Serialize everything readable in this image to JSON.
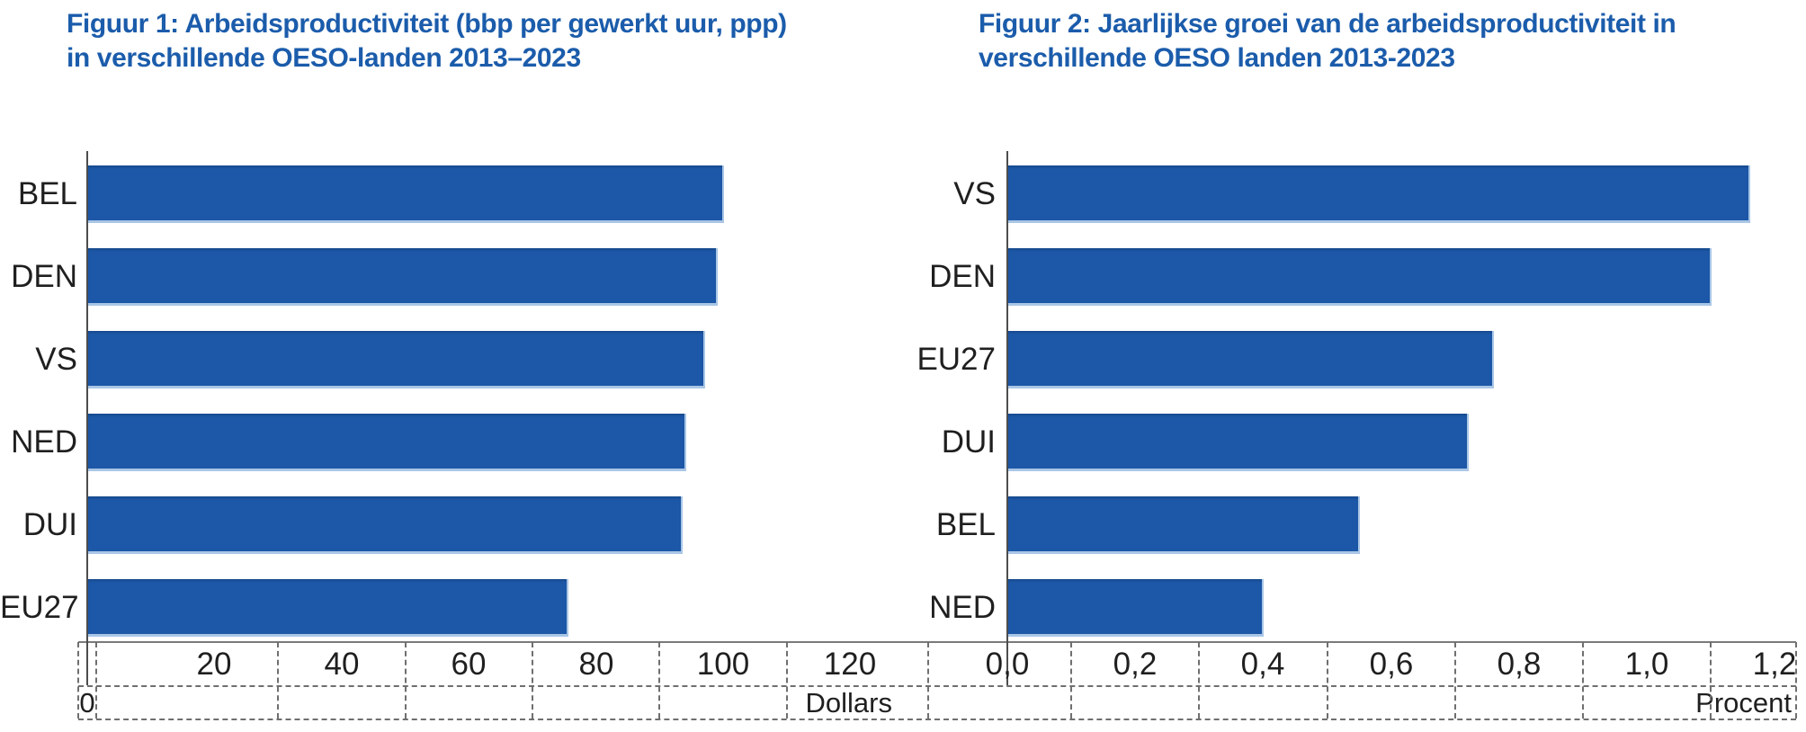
{
  "page": {
    "background": "#ffffff",
    "description": "Two horizontal bar charts comparing OECD countries"
  },
  "style": {
    "title_color": "#1b5cab",
    "bar_color": "#1d57a7",
    "bar_edge_color": "#a9c6e6",
    "bar_top_shade": "#164a8d",
    "x_axis_color": "#7a7a7a",
    "y_axis_color": "#4d4d4d",
    "grid_dash_color": "#6f6f6f",
    "text_color": "#1f1f1f"
  },
  "figure1": {
    "title_line1": "Figuur 1: Arbeidsproductiviteit (bbp per gewerkt uur, ppp)",
    "title_line2": "in verschillende OESO-landen 2013–2023"
  },
  "figure2": {
    "title_line1": "Figuur 2: Jaarlijkse groei van de arbeidsproductiviteit in",
    "title_line2": "verschillende OESO landen 2013-2023"
  },
  "chart_data": [
    {
      "type": "bar",
      "orientation": "horizontal",
      "title": "Figuur 1: Arbeidsproductiviteit (bbp per gewerkt uur, ppp) in verschillende OESO-landen 2013–2023",
      "categories": [
        "BEL",
        "DEN",
        "VS",
        "NED",
        "DUI",
        "EU27"
      ],
      "values": [
        100,
        99,
        97,
        94,
        93.5,
        75.5
      ],
      "xlabel": "Dollars",
      "origin_label": "0",
      "xtick_labels": [
        "20",
        "40",
        "60",
        "80",
        "100",
        "120"
      ],
      "xtick_values": [
        20,
        40,
        60,
        80,
        100,
        120
      ],
      "xlim": [
        0,
        132
      ],
      "grid": "dashed-table-below-axis",
      "legend": "none"
    },
    {
      "type": "bar",
      "orientation": "horizontal",
      "title": "Figuur 2: Jaarlijkse groei van de arbeidsproductiviteit in verschillende OESO landen 2013-2023",
      "categories": [
        "VS",
        "DEN",
        "EU27",
        "DUI",
        "BEL",
        "NED"
      ],
      "values": [
        1.16,
        1.1,
        0.76,
        0.72,
        0.55,
        0.4
      ],
      "xlabel": "Procent",
      "xtick_labels": [
        "0,0",
        "0,2",
        "0,4",
        "0,6",
        "0,8",
        "1,0",
        "1,2"
      ],
      "xtick_values": [
        0,
        0.2,
        0.4,
        0.6,
        0.8,
        1.0,
        1.2
      ],
      "xlim": [
        0,
        1.23
      ],
      "grid": "dashed-table-below-axis",
      "legend": "none"
    }
  ]
}
